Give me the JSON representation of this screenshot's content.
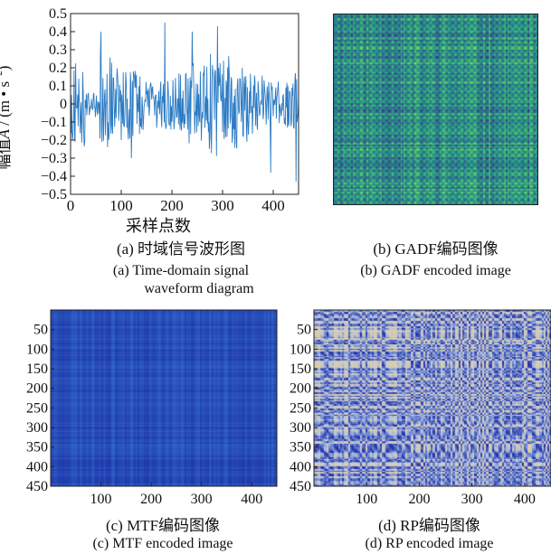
{
  "colors": {
    "line": "#2b7bc4",
    "frame": "#222222"
  },
  "panels": {
    "a": {
      "caption_cn": "(a) 时域信号波形图",
      "caption_en_1": "(a) Time-domain signal",
      "caption_en_2": "waveform diagram"
    },
    "b": {
      "caption_cn": "(b) GADF编码图像",
      "caption_en": "(b) GADF encoded image"
    },
    "c": {
      "caption_cn": "(c) MTF编码图像",
      "caption_en": "(c) MTF encoded image"
    },
    "d": {
      "caption_cn": "(d) RP编码图像",
      "caption_en": "(d) RP encoded image"
    }
  },
  "chart_data": [
    {
      "type": "line",
      "panel": "a",
      "xlabel": "采样点数",
      "ylabel_prefix": "幅值",
      "ylabel_symbol": "A",
      "ylabel_unit": " / (m • s",
      "ylabel_exp": "−2",
      "ylabel_close": ")",
      "xlim": [
        0,
        450
      ],
      "ylim": [
        -0.5,
        0.5
      ],
      "xticks": [
        "0",
        "100",
        "200",
        "300",
        "400"
      ],
      "yticks": [
        "0.5",
        "0.4",
        "0.3",
        "0.2",
        "0.1",
        "0",
        "−0.1",
        "−0.2",
        "−0.3",
        "−0.4",
        "−0.5"
      ],
      "signal": "vibration waveform, 450 samples, amplitude mostly within ±0.35, peaks ≈0.45 near x≈185 and x≈290, trough ≈−0.43 near x≈445",
      "grid": false
    },
    {
      "type": "heatmap",
      "panel": "b",
      "colormap": "viridis",
      "shape": [
        450,
        450
      ],
      "axes": "hidden"
    },
    {
      "type": "heatmap",
      "panel": "c",
      "colormap": "blue",
      "shape": [
        450,
        450
      ],
      "xticks": [
        "100",
        "200",
        "300",
        "400"
      ],
      "yticks": [
        "50",
        "100",
        "150",
        "200",
        "250",
        "300",
        "350",
        "400",
        "450"
      ]
    },
    {
      "type": "heatmap",
      "panel": "d",
      "colormap": "blue-beige",
      "shape": [
        450,
        450
      ],
      "xticks": [
        "100",
        "200",
        "300",
        "400"
      ],
      "yticks": [
        "50",
        "100",
        "150",
        "200",
        "250",
        "300",
        "350",
        "400",
        "450"
      ]
    }
  ]
}
